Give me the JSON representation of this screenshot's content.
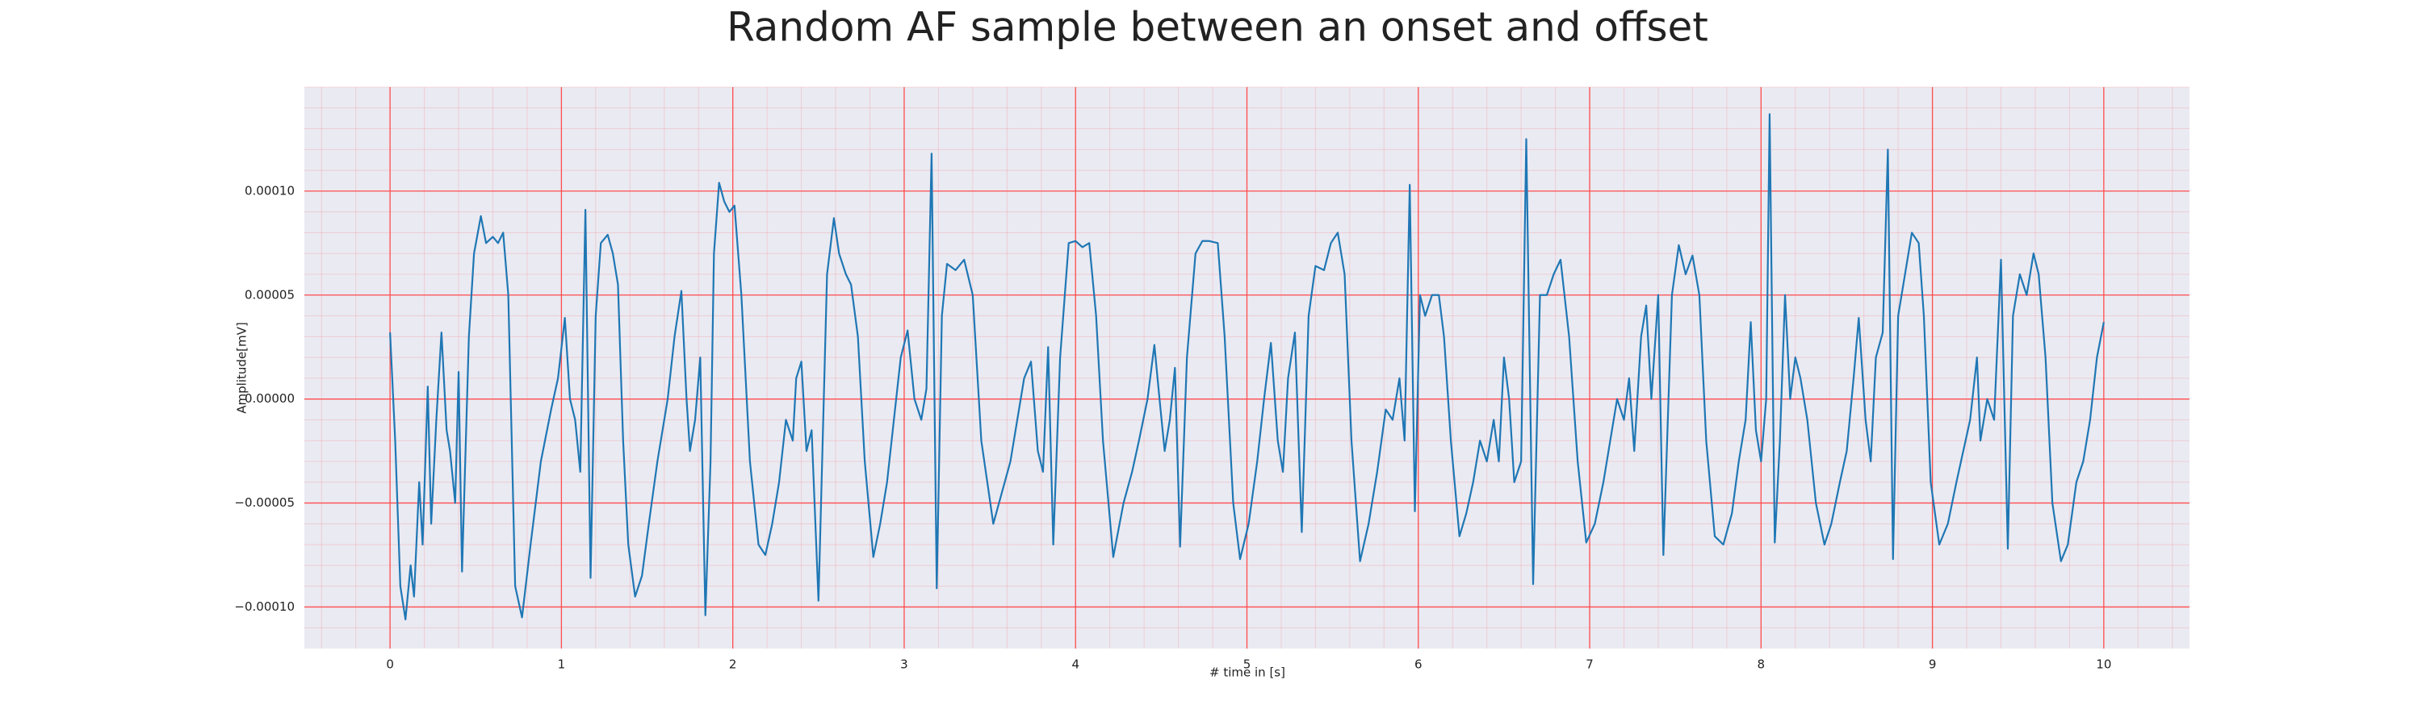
{
  "chart_data": {
    "type": "line",
    "title": "Random AF sample between an onset and offset",
    "xlabel": "# time in [s]",
    "ylabel": "Amplitude[mV]",
    "color": "#1f77b4",
    "grid": true,
    "minor_grid": true,
    "grid_color": "#ff4d4d",
    "background": "#eaeaf2",
    "xlim": [
      -0.5,
      10.5
    ],
    "xticks": [
      0,
      1,
      2,
      3,
      4,
      5,
      6,
      7,
      8,
      9,
      10
    ],
    "ylim": [
      -0.00012,
      0.00015
    ],
    "yticks": [
      {
        "value": -0.0001,
        "label": "−0.00010"
      },
      {
        "value": -5e-05,
        "label": "−0.00005"
      },
      {
        "value": 0,
        "label": "0.00000"
      },
      {
        "value": 5e-05,
        "label": "0.00005"
      },
      {
        "value": 0.0001,
        "label": "0.00010"
      }
    ],
    "x": [
      0.0,
      0.03,
      0.06,
      0.09,
      0.12,
      0.14,
      0.17,
      0.19,
      0.22,
      0.24,
      0.27,
      0.3,
      0.33,
      0.35,
      0.38,
      0.4,
      0.42,
      0.46,
      0.49,
      0.53,
      0.56,
      0.6,
      0.63,
      0.66,
      0.69,
      0.73,
      0.77,
      0.82,
      0.88,
      0.94,
      0.98,
      1.02,
      1.05,
      1.08,
      1.11,
      1.14,
      1.17,
      1.2,
      1.23,
      1.27,
      1.3,
      1.33,
      1.36,
      1.39,
      1.43,
      1.47,
      1.51,
      1.56,
      1.62,
      1.66,
      1.7,
      1.73,
      1.75,
      1.78,
      1.81,
      1.84,
      1.87,
      1.89,
      1.92,
      1.95,
      1.98,
      2.01,
      2.05,
      2.1,
      2.15,
      2.19,
      2.23,
      2.27,
      2.31,
      2.35,
      2.37,
      2.4,
      2.43,
      2.46,
      2.5,
      2.55,
      2.59,
      2.62,
      2.66,
      2.69,
      2.73,
      2.77,
      2.82,
      2.86,
      2.9,
      2.94,
      2.98,
      3.02,
      3.06,
      3.1,
      3.13,
      3.16,
      3.19,
      3.22,
      3.25,
      3.3,
      3.35,
      3.4,
      3.45,
      3.52,
      3.57,
      3.62,
      3.66,
      3.7,
      3.74,
      3.78,
      3.81,
      3.84,
      3.87,
      3.91,
      3.96,
      4.0,
      4.04,
      4.08,
      4.12,
      4.16,
      4.22,
      4.28,
      4.33,
      4.37,
      4.42,
      4.46,
      4.49,
      4.52,
      4.55,
      4.58,
      4.61,
      4.65,
      4.7,
      4.74,
      4.78,
      4.83,
      4.87,
      4.92,
      4.96,
      5.01,
      5.06,
      5.1,
      5.14,
      5.18,
      5.21,
      5.24,
      5.28,
      5.32,
      5.36,
      5.4,
      5.45,
      5.49,
      5.53,
      5.57,
      5.61,
      5.66,
      5.71,
      5.76,
      5.81,
      5.85,
      5.89,
      5.92,
      5.95,
      5.98,
      6.01,
      6.04,
      6.08,
      6.12,
      6.15,
      6.19,
      6.24,
      6.28,
      6.32,
      6.36,
      6.4,
      6.44,
      6.47,
      6.5,
      6.53,
      6.56,
      6.6,
      6.63,
      6.67,
      6.71,
      6.75,
      6.79,
      6.83,
      6.88,
      6.93,
      6.98,
      7.03,
      7.08,
      7.12,
      7.16,
      7.2,
      7.23,
      7.26,
      7.3,
      7.33,
      7.36,
      7.4,
      7.43,
      7.48,
      7.52,
      7.56,
      7.6,
      7.64,
      7.68,
      7.73,
      7.78,
      7.83,
      7.87,
      7.91,
      7.94,
      7.97,
      8.0,
      8.03,
      8.05,
      8.08,
      8.11,
      8.14,
      8.17,
      8.2,
      8.23,
      8.27,
      8.32,
      8.37,
      8.41,
      8.46,
      8.5,
      8.54,
      8.57,
      8.61,
      8.64,
      8.67,
      8.71,
      8.74,
      8.77,
      8.8,
      8.84,
      8.88,
      8.92,
      8.95,
      8.99,
      9.04,
      9.09,
      9.14,
      9.18,
      9.22,
      9.26,
      9.28,
      9.32,
      9.36,
      9.4,
      9.44,
      9.47,
      9.51,
      9.55,
      9.59,
      9.62,
      9.66,
      9.7,
      9.75,
      9.79,
      9.84,
      9.88,
      9.92,
      9.96,
      10.0
    ],
    "values": [
      3.2e-05,
      -2e-05,
      -9e-05,
      -0.000106,
      -8e-05,
      -9.5e-05,
      -4e-05,
      -7e-05,
      6e-06,
      -6e-05,
      -1e-05,
      3.2e-05,
      -1.5e-05,
      -2.5e-05,
      -5e-05,
      1.3e-05,
      -8.3e-05,
      3e-05,
      7e-05,
      8.8e-05,
      7.5e-05,
      7.8e-05,
      7.5e-05,
      8e-05,
      5e-05,
      -9e-05,
      -0.000105,
      -7e-05,
      -3e-05,
      -5e-06,
      1e-05,
      3.9e-05,
      0,
      -1e-05,
      -3.5e-05,
      9.1e-05,
      -8.6e-05,
      4e-05,
      7.5e-05,
      7.9e-05,
      7e-05,
      5.5e-05,
      -2e-05,
      -7e-05,
      -9.5e-05,
      -8.5e-05,
      -6e-05,
      -3e-05,
      0,
      3e-05,
      5.2e-05,
      0,
      -2.5e-05,
      -1e-05,
      2e-05,
      -0.000104,
      -3e-05,
      7e-05,
      0.000104,
      9.5e-05,
      9e-05,
      9.3e-05,
      5e-05,
      -3e-05,
      -7e-05,
      -7.5e-05,
      -6e-05,
      -4e-05,
      -1e-05,
      -2e-05,
      1e-05,
      1.8e-05,
      -2.5e-05,
      -1.5e-05,
      -9.7e-05,
      6e-05,
      8.7e-05,
      7e-05,
      6e-05,
      5.5e-05,
      3e-05,
      -3e-05,
      -7.6e-05,
      -6e-05,
      -4e-05,
      -1e-05,
      2e-05,
      3.3e-05,
      0,
      -1e-05,
      5e-06,
      0.000118,
      -9.1e-05,
      4e-05,
      6.5e-05,
      6.2e-05,
      6.7e-05,
      5e-05,
      -2e-05,
      -6e-05,
      -4.5e-05,
      -3e-05,
      -1e-05,
      1e-05,
      1.8e-05,
      -2.5e-05,
      -3.5e-05,
      2.5e-05,
      -7e-05,
      2e-05,
      7.5e-05,
      7.6e-05,
      7.3e-05,
      7.5e-05,
      4e-05,
      -2e-05,
      -7.6e-05,
      -5e-05,
      -3.5e-05,
      -2e-05,
      0,
      2.6e-05,
      0,
      -2.5e-05,
      -1e-05,
      1.5e-05,
      -7.1e-05,
      2e-05,
      7e-05,
      7.6e-05,
      7.6e-05,
      7.5e-05,
      3e-05,
      -5e-05,
      -7.7e-05,
      -6e-05,
      -3e-05,
      0,
      2.7e-05,
      -2e-05,
      -3.5e-05,
      1e-05,
      3.2e-05,
      -6.4e-05,
      4e-05,
      6.4e-05,
      6.2e-05,
      7.5e-05,
      8e-05,
      6e-05,
      -2e-05,
      -7.8e-05,
      -6e-05,
      -3.5e-05,
      -5e-06,
      -1e-05,
      1e-05,
      -2e-05,
      0.000103,
      -5.4e-05,
      5e-05,
      4e-05,
      5e-05,
      5e-05,
      3e-05,
      -2e-05,
      -6.6e-05,
      -5.5e-05,
      -4e-05,
      -2e-05,
      -3e-05,
      -1e-05,
      -3e-05,
      2e-05,
      0,
      -4e-05,
      -3e-05,
      0.000125,
      -8.9e-05,
      5e-05,
      5e-05,
      6e-05,
      6.7e-05,
      3e-05,
      -3e-05,
      -6.9e-05,
      -6e-05,
      -4e-05,
      -2e-05,
      0,
      -1e-05,
      1e-05,
      -2.5e-05,
      3e-05,
      4.5e-05,
      0,
      5e-05,
      -7.5e-05,
      5e-05,
      7.4e-05,
      6e-05,
      6.9e-05,
      5e-05,
      -2e-05,
      -6.6e-05,
      -7e-05,
      -5.5e-05,
      -3e-05,
      -1e-05,
      3.7e-05,
      -1.5e-05,
      -3e-05,
      0,
      0.000137,
      -6.9e-05,
      -2e-05,
      5e-05,
      0,
      2e-05,
      1e-05,
      -1e-05,
      -5e-05,
      -7e-05,
      -6e-05,
      -4e-05,
      -2.5e-05,
      1e-05,
      3.9e-05,
      -1e-05,
      -3e-05,
      2e-05,
      3.2e-05,
      0.00012,
      -7.7e-05,
      4e-05,
      6e-05,
      8e-05,
      7.5e-05,
      4e-05,
      -4e-05,
      -7e-05,
      -6e-05,
      -4e-05,
      -2.5e-05,
      -1e-05,
      2e-05,
      -2e-05,
      0,
      -1e-05,
      6.7e-05,
      -7.2e-05,
      4e-05,
      6e-05,
      5e-05,
      7e-05,
      6e-05,
      2e-05,
      -5e-05,
      -7.8e-05,
      -7e-05,
      -4e-05,
      -3e-05,
      -1e-05,
      2e-05,
      3.7e-05
    ]
  }
}
